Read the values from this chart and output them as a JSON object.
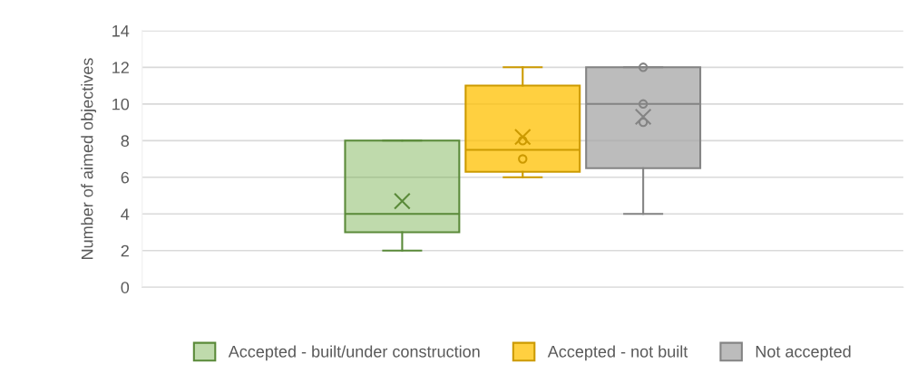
{
  "chart_data": {
    "type": "box",
    "ylabel": "Number of aimed objectives",
    "categories": [
      null
    ],
    "ylim": [
      0,
      14
    ],
    "yticks": [
      0,
      2,
      4,
      6,
      8,
      10,
      12,
      14
    ],
    "grid": "y",
    "legend": "bottom",
    "marker": "circle",
    "series": [
      {
        "name": "Accepted - built/under construction",
        "color": "#70ad47",
        "boxes": [
          {
            "low": 2,
            "q1": 3,
            "median": 4,
            "q3": 8,
            "high": 8,
            "mean": 4.7
          }
        ]
      },
      {
        "name": "Accepted - not built",
        "color": "#ffc000",
        "boxes": [
          {
            "low": 6,
            "q1": 6.3,
            "median": 7.5,
            "q3": 11,
            "high": 12,
            "mean": 8.2,
            "outliers": [
              8,
              7
            ]
          }
        ]
      },
      {
        "name": "Not accepted",
        "color": "#a5a5a5",
        "boxes": [
          {
            "low": 4,
            "q1": 6.5,
            "median": 10,
            "q3": 12,
            "high": 12,
            "mean": 9.3,
            "outliers": [
              12,
              10,
              9
            ]
          }
        ]
      }
    ]
  }
}
